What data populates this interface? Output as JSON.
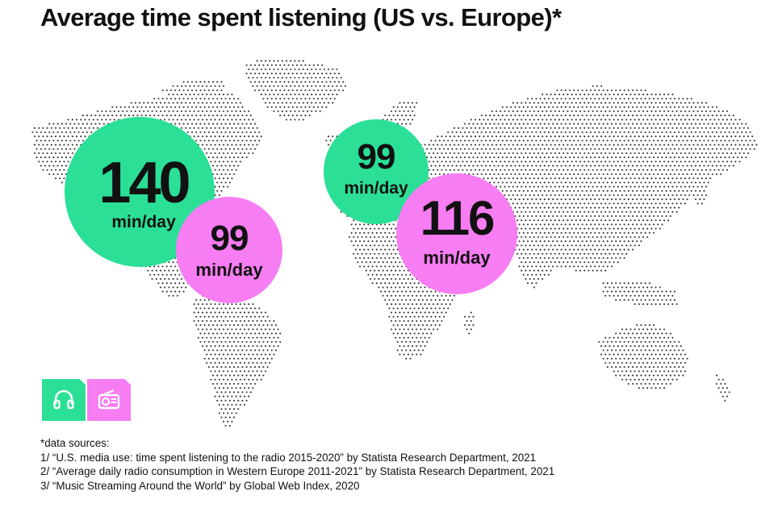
{
  "title": "Average time spent listening (US vs. Europe)*",
  "colors": {
    "music_streaming": "#2bdf97",
    "radio": "#f77df3",
    "map_dots": "#333333"
  },
  "regions": {
    "us": {
      "music": {
        "value": "140",
        "unit": "min/day"
      },
      "radio": {
        "value": "99",
        "unit": "min/day"
      }
    },
    "europe": {
      "music": {
        "value": "99",
        "unit": "min/day"
      },
      "radio": {
        "value": "116",
        "unit": "min/day"
      }
    }
  },
  "legend": [
    {
      "icon": "headphones-icon",
      "color": "#2bdf97"
    },
    {
      "icon": "radio-icon",
      "color": "#f77df3"
    }
  ],
  "sources": {
    "heading": "*data sources:",
    "items": [
      "1/ “U.S. media use: time spent listening to the radio 2015-2020” by Statista Research Department, 2021",
      "2/ “Average daily radio consumption in Western Europe 2011-2021” by Statista Research Department, 2021",
      "3/ “Music Streaming Around the World” by Global Web Index, 2020"
    ]
  }
}
